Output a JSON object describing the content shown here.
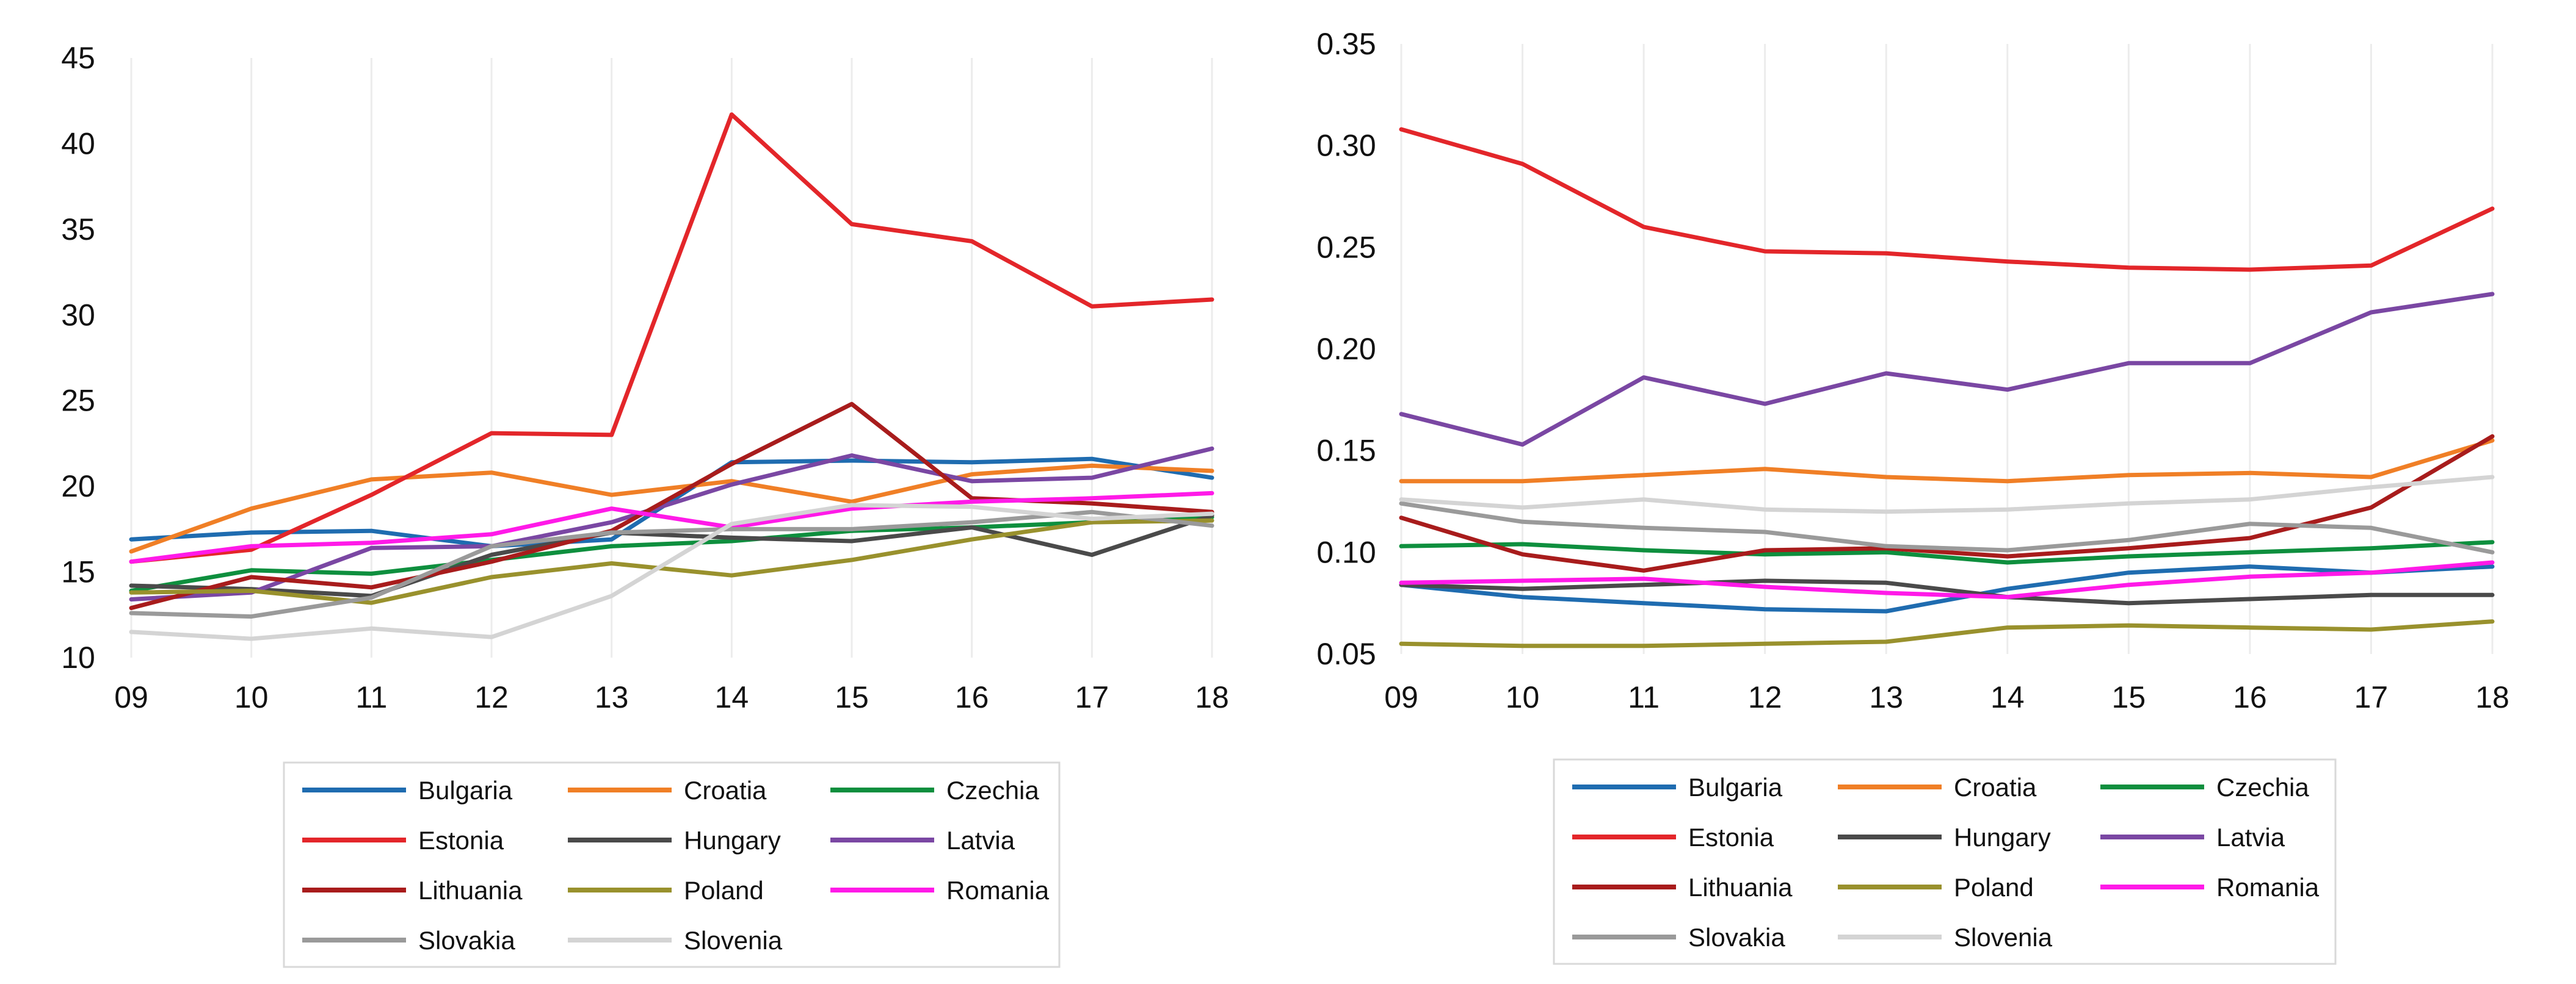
{
  "chart_data": [
    {
      "type": "line",
      "title": "",
      "xlabel": "",
      "ylabel": "",
      "categories": [
        "09",
        "10",
        "11",
        "12",
        "13",
        "14",
        "15",
        "16",
        "17",
        "18"
      ],
      "ylim": [
        10,
        45
      ],
      "yticks": [
        "10",
        "15",
        "20",
        "25",
        "30",
        "35",
        "40",
        "45"
      ],
      "grid": "vertical",
      "legend_position": "bottom",
      "series": [
        {
          "name": "Bulgaria",
          "color": "#1f6cb0",
          "values": [
            16.9,
            17.3,
            17.4,
            16.5,
            16.9,
            21.4,
            21.5,
            21.4,
            21.6,
            20.5
          ]
        },
        {
          "name": "Croatia",
          "color": "#f07f26",
          "values": [
            16.2,
            18.7,
            20.4,
            20.8,
            19.5,
            20.3,
            19.1,
            20.7,
            21.2,
            20.9
          ]
        },
        {
          "name": "Czechia",
          "color": "#0e8f3e",
          "values": [
            13.9,
            15.1,
            14.9,
            15.7,
            16.5,
            16.8,
            17.4,
            17.6,
            17.9,
            18.2
          ]
        },
        {
          "name": "Estonia",
          "color": "#e3262a",
          "values": [
            15.6,
            16.3,
            19.5,
            23.1,
            23.0,
            41.7,
            35.3,
            34.3,
            30.5,
            30.9
          ]
        },
        {
          "name": "Hungary",
          "color": "#4a4a4a",
          "values": [
            14.2,
            14.0,
            13.6,
            16.0,
            17.3,
            17.0,
            16.8,
            17.6,
            16.0,
            18.3
          ]
        },
        {
          "name": "Latvia",
          "color": "#7a47a3",
          "values": [
            13.4,
            13.8,
            16.4,
            16.5,
            17.9,
            20.1,
            21.8,
            20.3,
            20.5,
            22.2
          ]
        },
        {
          "name": "Lithuania",
          "color": "#a81c1c",
          "values": [
            12.9,
            14.7,
            14.1,
            15.6,
            17.4,
            21.3,
            24.8,
            19.3,
            19.0,
            18.5
          ]
        },
        {
          "name": "Poland",
          "color": "#99912d",
          "values": [
            13.8,
            13.9,
            13.2,
            14.7,
            15.5,
            14.8,
            15.7,
            16.9,
            17.9,
            18.0
          ]
        },
        {
          "name": "Romania",
          "color": "#ff1ae8",
          "values": [
            15.6,
            16.5,
            16.7,
            17.2,
            18.7,
            17.6,
            18.7,
            19.1,
            19.3,
            19.6
          ]
        },
        {
          "name": "Slovakia",
          "color": "#9a9a9a",
          "values": [
            12.6,
            12.4,
            13.5,
            16.5,
            17.3,
            17.5,
            17.5,
            17.9,
            18.5,
            17.7
          ]
        },
        {
          "name": "Slovenia",
          "color": "#d4d4d4",
          "values": [
            11.5,
            11.1,
            11.7,
            11.2,
            13.6,
            17.8,
            18.9,
            18.8,
            18.1,
            18.4
          ]
        }
      ]
    },
    {
      "type": "line",
      "title": "",
      "xlabel": "",
      "ylabel": "",
      "categories": [
        "09",
        "10",
        "11",
        "12",
        "13",
        "14",
        "15",
        "16",
        "17",
        "18"
      ],
      "ylim": [
        0.05,
        0.35
      ],
      "yticks": [
        "0.05",
        "0.10",
        "0.15",
        "0.20",
        "0.25",
        "0.30",
        "0.35"
      ],
      "grid": "vertical",
      "legend_position": "bottom",
      "series": [
        {
          "name": "Bulgaria",
          "color": "#1f6cb0",
          "values": [
            0.084,
            0.078,
            0.075,
            0.072,
            0.071,
            0.082,
            0.09,
            0.093,
            0.09,
            0.093
          ]
        },
        {
          "name": "Croatia",
          "color": "#f07f26",
          "values": [
            0.135,
            0.135,
            0.138,
            0.141,
            0.137,
            0.135,
            0.138,
            0.139,
            0.137,
            0.155
          ]
        },
        {
          "name": "Czechia",
          "color": "#0e8f3e",
          "values": [
            0.103,
            0.104,
            0.101,
            0.099,
            0.1,
            0.095,
            0.098,
            0.1,
            0.102,
            0.105
          ]
        },
        {
          "name": "Estonia",
          "color": "#e3262a",
          "values": [
            0.308,
            0.291,
            0.26,
            0.248,
            0.247,
            0.243,
            0.24,
            0.239,
            0.241,
            0.269
          ]
        },
        {
          "name": "Hungary",
          "color": "#4a4a4a",
          "values": [
            0.084,
            0.082,
            0.084,
            0.086,
            0.085,
            0.078,
            0.075,
            0.077,
            0.079,
            0.079
          ]
        },
        {
          "name": "Latvia",
          "color": "#7a47a3",
          "values": [
            0.168,
            0.153,
            0.186,
            0.173,
            0.188,
            0.18,
            0.193,
            0.193,
            0.218,
            0.227
          ]
        },
        {
          "name": "Lithuania",
          "color": "#a81c1c",
          "values": [
            0.117,
            0.099,
            0.091,
            0.101,
            0.102,
            0.098,
            0.102,
            0.107,
            0.122,
            0.157
          ]
        },
        {
          "name": "Poland",
          "color": "#99912d",
          "values": [
            0.055,
            0.054,
            0.054,
            0.055,
            0.056,
            0.063,
            0.064,
            0.063,
            0.062,
            0.066
          ]
        },
        {
          "name": "Romania",
          "color": "#ff1ae8",
          "values": [
            0.085,
            0.086,
            0.087,
            0.083,
            0.08,
            0.078,
            0.084,
            0.088,
            0.09,
            0.095
          ]
        },
        {
          "name": "Slovakia",
          "color": "#9a9a9a",
          "values": [
            0.124,
            0.115,
            0.112,
            0.11,
            0.103,
            0.101,
            0.106,
            0.114,
            0.112,
            0.1
          ]
        },
        {
          "name": "Slovenia",
          "color": "#d4d4d4",
          "values": [
            0.126,
            0.122,
            0.126,
            0.121,
            0.12,
            0.121,
            0.124,
            0.126,
            0.132,
            0.137
          ]
        }
      ]
    }
  ]
}
